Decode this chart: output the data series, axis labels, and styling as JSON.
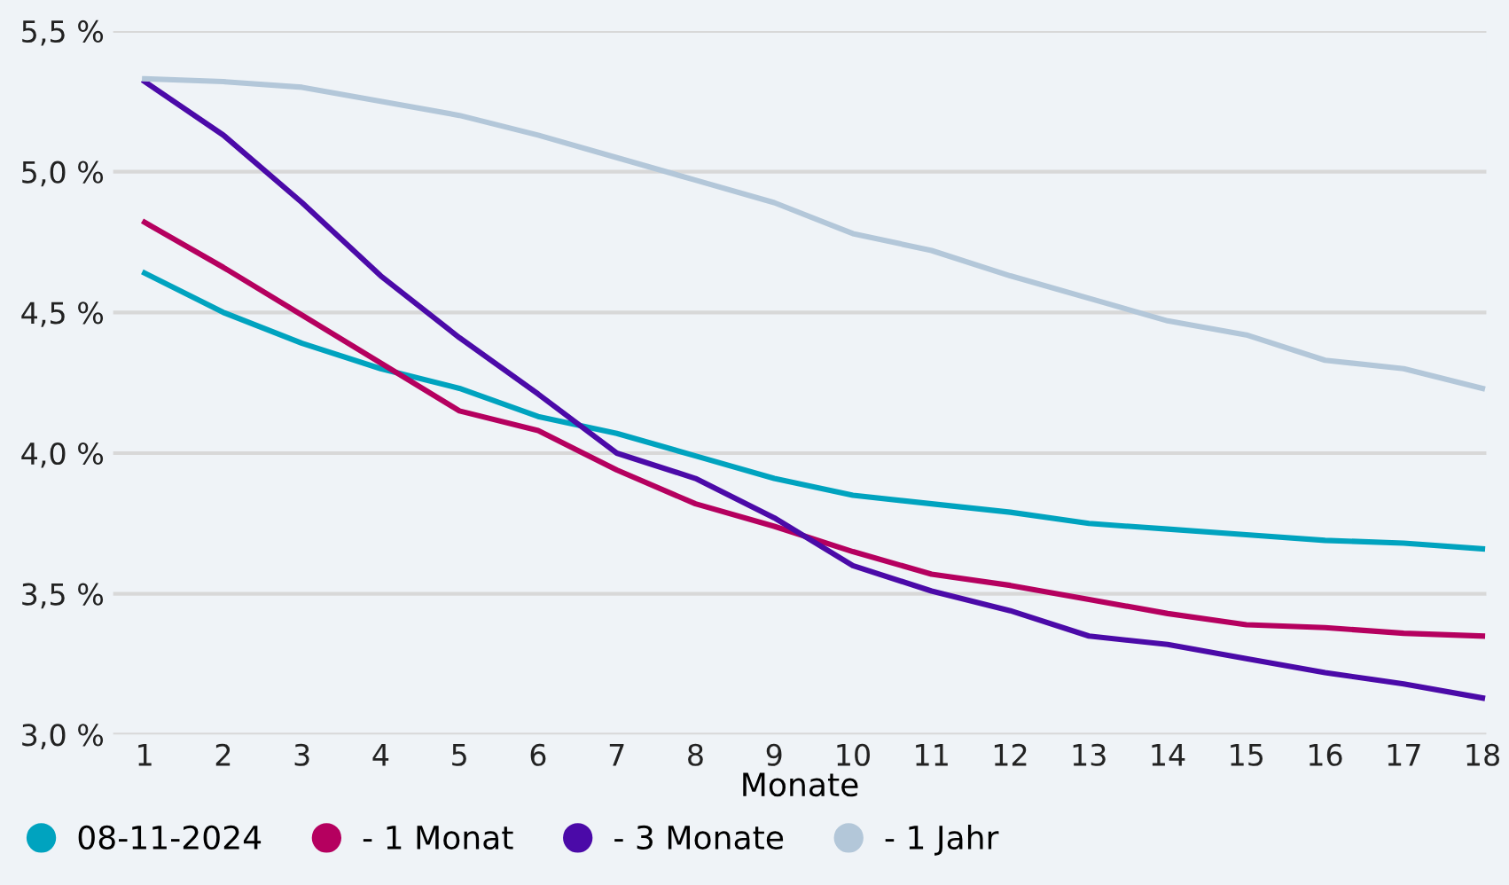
{
  "chart_data": {
    "type": "line",
    "xlabel": "Monate",
    "x": [
      1,
      2,
      3,
      4,
      5,
      6,
      7,
      8,
      9,
      10,
      11,
      12,
      13,
      14,
      15,
      16,
      17,
      18
    ],
    "xlim": [
      0.6,
      18.05
    ],
    "xticks": [
      1,
      2,
      3,
      4,
      5,
      6,
      7,
      8,
      9,
      10,
      11,
      12,
      13,
      14,
      15,
      16,
      17,
      18
    ],
    "ylim": [
      3.0,
      5.5
    ],
    "yticks": [
      {
        "value": 3.0,
        "label": "3,0 %"
      },
      {
        "value": 3.5,
        "label": "3,5 %"
      },
      {
        "value": 4.0,
        "label": "4,0 %"
      },
      {
        "value": 4.5,
        "label": "4,5 %"
      },
      {
        "value": 5.0,
        "label": "5,0 %"
      },
      {
        "value": 5.5,
        "label": "5,5 %"
      }
    ],
    "grid": "y",
    "legend": "bottom",
    "marker": "none",
    "line_style": "solid",
    "series": [
      {
        "name": "08-11-2024",
        "color": "#00a3bf",
        "values": [
          4.64,
          4.5,
          4.39,
          4.3,
          4.23,
          4.13,
          4.07,
          3.99,
          3.91,
          3.85,
          3.82,
          3.79,
          3.75,
          3.73,
          3.71,
          3.69,
          3.68,
          3.66
        ]
      },
      {
        "name": "- 1 Monat",
        "color": "#b5005f",
        "values": [
          4.82,
          4.66,
          4.49,
          4.32,
          4.15,
          4.08,
          3.94,
          3.82,
          3.74,
          3.65,
          3.57,
          3.53,
          3.48,
          3.43,
          3.39,
          3.38,
          3.36,
          3.35
        ]
      },
      {
        "name": "- 3 Monate",
        "color": "#4b0aa8",
        "values": [
          5.32,
          5.13,
          4.89,
          4.63,
          4.41,
          4.21,
          4.0,
          3.91,
          3.77,
          3.6,
          3.51,
          3.44,
          3.35,
          3.32,
          3.27,
          3.22,
          3.18,
          3.13
        ]
      },
      {
        "name": "- 1 Jahr",
        "color": "#b3c7d9",
        "values": [
          5.33,
          5.32,
          5.3,
          5.25,
          5.2,
          5.13,
          5.05,
          4.97,
          4.89,
          4.78,
          4.72,
          4.63,
          4.55,
          4.47,
          4.42,
          4.33,
          4.3,
          4.23
        ]
      }
    ]
  }
}
